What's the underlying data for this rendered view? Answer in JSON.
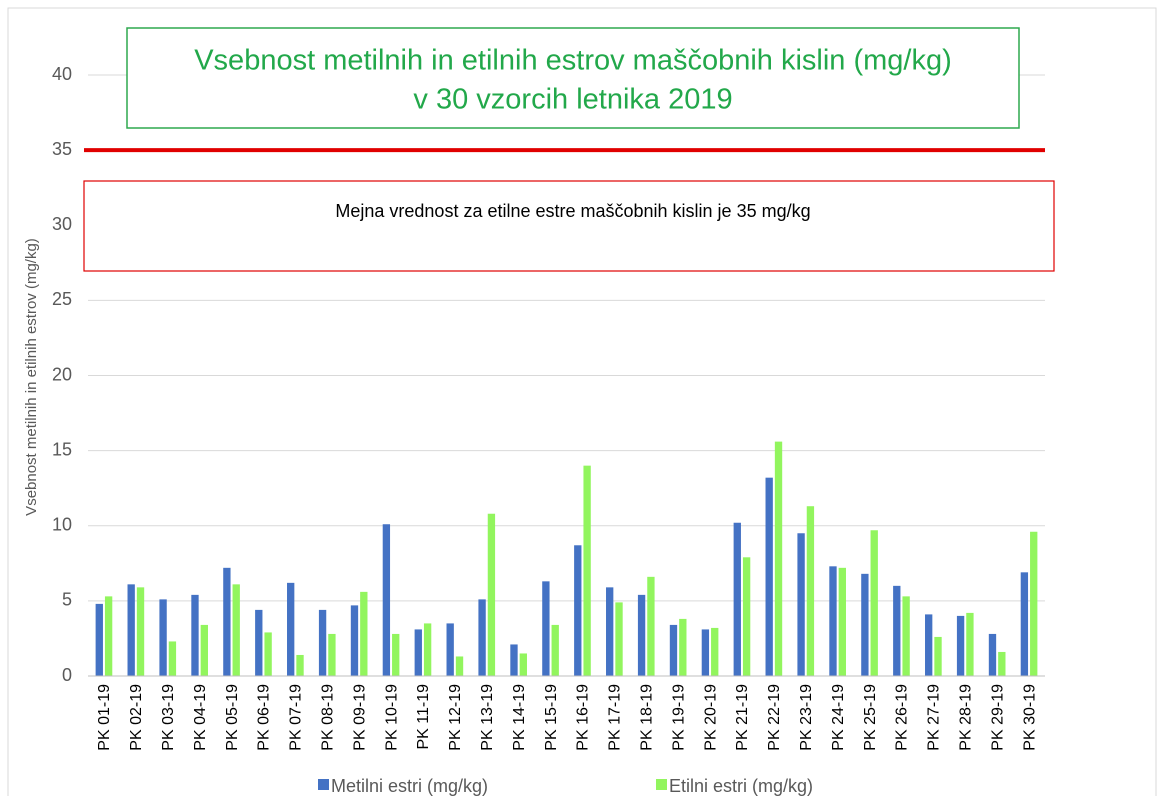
{
  "chart_data": {
    "type": "bar",
    "title": [
      "Vsebnost metilnih in etilnih estrov maščobnih kislin (mg/kg)",
      "v 30 vzorcih letnika 2019"
    ],
    "annotation": "Mejna vrednost za etilne estre maščobnih kislin je 35 mg/kg",
    "limit_line": {
      "value": 35,
      "color": "#e00000"
    },
    "ylabel": "Vsebnost metilnih in etilnih estrov (mg/kg)",
    "categories": [
      "PK 01-19",
      "PK 02-19",
      "PK 03-19",
      "PK 04-19",
      "PK 05-19",
      "PK 06-19",
      "PK 07-19",
      "PK 08-19",
      "PK 09-19",
      "PK 10-19",
      "PK 11-19",
      "PK 12-19",
      "PK 13-19",
      "PK 14-19",
      "PK 15-19",
      "PK 16-19",
      "PK 17-19",
      "PK 18-19",
      "PK 19-19",
      "PK 20-19",
      "PK 21-19",
      "PK 22-19",
      "PK 23-19",
      "PK 24-19",
      "PK 25-19",
      "PK 26-19",
      "PK 27-19",
      "PK 28-19",
      "PK 29-19",
      "PK 30-19"
    ],
    "series": [
      {
        "name": "Metilni estri (mg/kg)",
        "color": "#4472c4",
        "values": [
          4.8,
          6.1,
          5.1,
          5.4,
          7.2,
          4.4,
          6.2,
          4.4,
          4.7,
          10.1,
          3.1,
          3.5,
          5.1,
          2.1,
          6.3,
          8.7,
          5.9,
          5.4,
          3.4,
          3.1,
          10.2,
          13.2,
          9.5,
          7.3,
          6.8,
          6.0,
          4.1,
          4.0,
          2.8,
          6.9
        ]
      },
      {
        "name": "Etilni estri (mg/kg)",
        "color": "#92f55e",
        "values": [
          5.3,
          5.9,
          2.3,
          3.4,
          6.1,
          2.9,
          1.4,
          2.8,
          5.6,
          2.8,
          3.5,
          1.3,
          10.8,
          1.5,
          3.4,
          14.0,
          4.9,
          6.6,
          3.8,
          3.2,
          7.9,
          15.6,
          11.3,
          7.2,
          9.7,
          5.3,
          2.6,
          4.2,
          1.6,
          9.6
        ]
      }
    ],
    "ylim": [
      0,
      40
    ],
    "yticks": [
      0,
      5,
      10,
      15,
      20,
      25,
      30,
      35,
      40
    ],
    "grid": true
  }
}
